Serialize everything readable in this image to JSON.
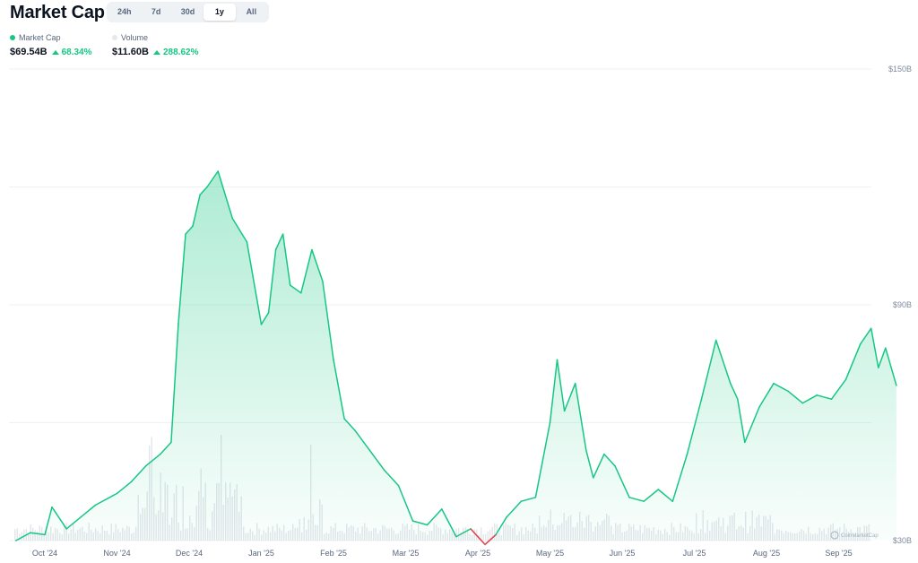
{
  "header": {
    "title": "Market Cap",
    "tabs": [
      "24h",
      "7d",
      "30d",
      "1y",
      "All"
    ],
    "active_tab": "1y"
  },
  "legend": {
    "market_cap": {
      "label": "Market Cap",
      "value": "$69.54B",
      "change": "68.34%",
      "color": "#16c784"
    },
    "volume": {
      "label": "Volume",
      "value": "$11.60B",
      "change": "288.62%",
      "color": "#e6e8ec"
    }
  },
  "watermark": "CoinMarketCap",
  "colors": {
    "up": "#16c784",
    "down": "#ea3943",
    "volume": "#e3e6eb"
  },
  "chart_data": {
    "type": "area",
    "y_axis": {
      "ticks": [
        "$150B",
        "$90B",
        "$30B"
      ],
      "tick_values": [
        150,
        90,
        30
      ],
      "range": [
        30,
        150
      ],
      "unit": "B USD",
      "position": "right"
    },
    "x_axis": {
      "ticks": [
        "Oct '24",
        "Nov '24",
        "Dec '24",
        "Jan '25",
        "Feb '25",
        "Mar '25",
        "Apr '25",
        "May '25",
        "Jun '25",
        "Jul '25",
        "Aug '25",
        "Sep '25"
      ],
      "range": [
        -0.4,
        11.9
      ]
    },
    "grid": true,
    "series": [
      {
        "name": "Market Cap",
        "x": [
          -0.4,
          -0.2,
          0.0,
          0.1,
          0.3,
          0.5,
          0.7,
          1.0,
          1.2,
          1.4,
          1.6,
          1.75,
          1.85,
          1.95,
          2.05,
          2.15,
          2.25,
          2.4,
          2.6,
          2.8,
          3.0,
          3.1,
          3.2,
          3.3,
          3.4,
          3.55,
          3.7,
          3.85,
          4.0,
          4.15,
          4.3,
          4.5,
          4.7,
          4.9,
          5.1,
          5.3,
          5.5,
          5.7,
          5.9,
          6.1,
          6.25,
          6.3,
          6.4,
          6.6,
          6.8,
          7.0,
          7.1,
          7.2,
          7.35,
          7.5,
          7.6,
          7.75,
          7.9,
          8.1,
          8.3,
          8.5,
          8.7,
          8.9,
          9.1,
          9.3,
          9.5,
          9.6,
          9.7,
          9.9,
          10.1,
          10.3,
          10.5,
          10.7,
          10.9,
          11.1,
          11.3,
          11.45,
          11.55,
          11.65,
          11.8
        ],
        "values": [
          30.0,
          32.0,
          31.5,
          38.5,
          33.0,
          36.0,
          39.0,
          42.0,
          45.0,
          49.0,
          52.0,
          55.0,
          85.0,
          108.0,
          110.0,
          118.0,
          120.0,
          124.0,
          112.0,
          106.0,
          85.0,
          88.0,
          104.0,
          108.0,
          95.0,
          93.0,
          104.0,
          96.0,
          76.0,
          61.0,
          58.0,
          53.0,
          48.0,
          44.0,
          35.0,
          34.0,
          38.0,
          31.0,
          33.0,
          29.0,
          31.5,
          33.0,
          36.0,
          40.0,
          41.0,
          60.0,
          76.0,
          63.0,
          70.0,
          53.0,
          46.0,
          52.0,
          49.0,
          41.0,
          40.0,
          43.0,
          40.0,
          52.0,
          66.0,
          81.0,
          70.0,
          66.0,
          55.0,
          64.0,
          70.0,
          68.0,
          65.0,
          67.0,
          66.0,
          71.0,
          80.0,
          84.0,
          74.0,
          79.0,
          69.5
        ]
      },
      {
        "name": "Volume",
        "type": "bar"
      }
    ]
  }
}
